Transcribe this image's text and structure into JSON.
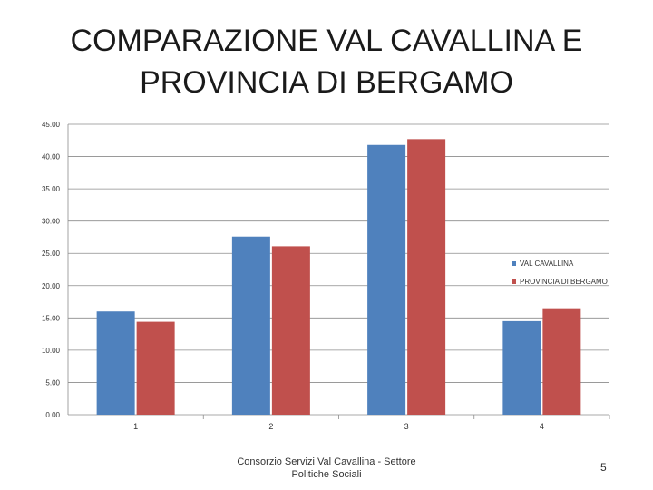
{
  "slide": {
    "title": "COMPARAZIONE VAL CAVALLINA E\nPROVINCIA DI BERGAMO",
    "footer": "Consorzio Servizi Val Cavallina - Settore Politiche Sociali",
    "page_number": "5"
  },
  "chart_data": {
    "type": "bar",
    "title": "",
    "xlabel": "",
    "ylabel": "",
    "categories": [
      "1",
      "2",
      "3",
      "4"
    ],
    "series": [
      {
        "name": "VAL CAVALLINA",
        "color": "#4f81bd",
        "values": [
          16.0,
          27.6,
          41.8,
          14.5
        ]
      },
      {
        "name": "PROVINCIA DI BERGAMO",
        "color": "#c0504d",
        "values": [
          14.4,
          26.1,
          42.7,
          16.5
        ]
      }
    ],
    "ylim": [
      0,
      45
    ],
    "yticks": [
      "0.00",
      "5.00",
      "10.00",
      "15.00",
      "20.00",
      "25.00",
      "30.00",
      "35.00",
      "40.00",
      "45.00"
    ],
    "grid": true,
    "legend_position": "right"
  }
}
